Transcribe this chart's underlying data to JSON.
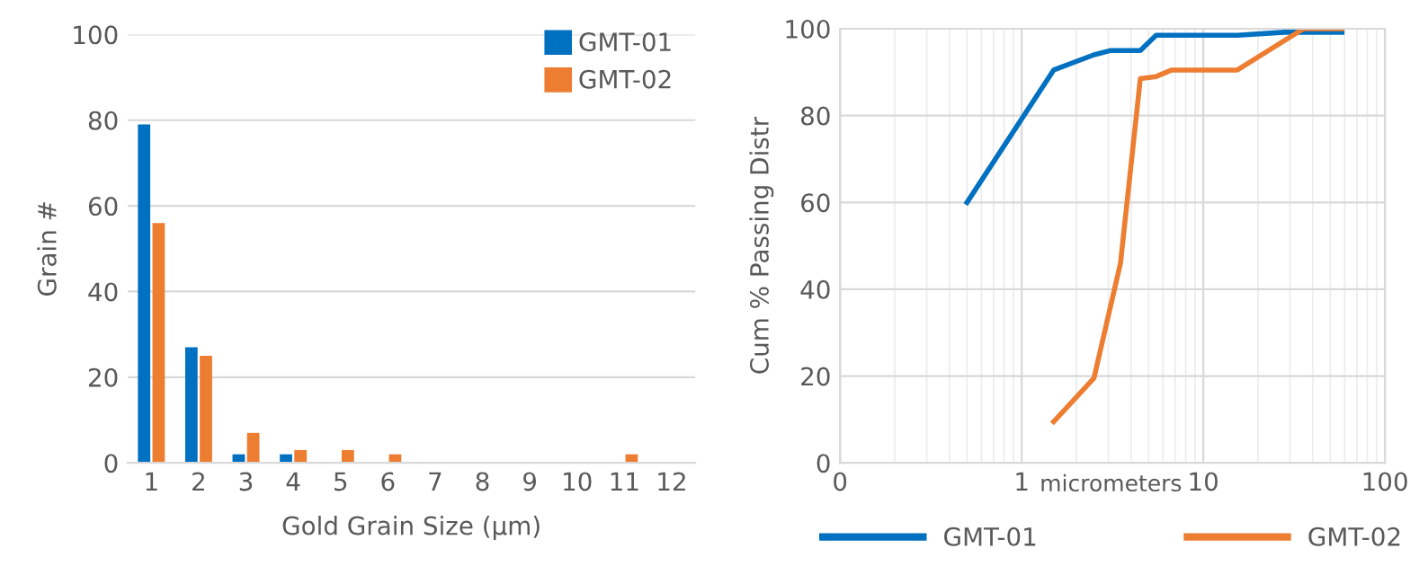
{
  "chart_data": [
    {
      "type": "bar",
      "xlabel": "Gold Grain Size (µm)",
      "ylabel": "Grain #",
      "categories": [
        "1",
        "2",
        "3",
        "4",
        "5",
        "6",
        "7",
        "8",
        "9",
        "10",
        "11",
        "12"
      ],
      "series": [
        {
          "name": "GMT-01",
          "color": "#0070c0",
          "values": [
            79,
            27,
            2,
            2,
            0,
            0,
            0,
            0,
            0,
            0,
            0,
            0
          ]
        },
        {
          "name": "GMT-02",
          "color": "#ed7d31",
          "values": [
            56,
            25,
            7,
            3,
            3,
            2,
            0,
            0,
            0,
            0,
            2,
            0
          ]
        }
      ],
      "ylim": [
        0,
        100
      ],
      "yticks": [
        0,
        20,
        40,
        60,
        80,
        100
      ],
      "grid": "y",
      "legend": "top right"
    },
    {
      "type": "line",
      "xlabel": "micrometers",
      "ylabel": "Cum % Passing Distr",
      "log": "x",
      "series": [
        {
          "name": "GMT-01",
          "color": "#0070c0",
          "x": [
            0.5,
            1.5,
            2.5,
            3.1,
            4.5,
            5.5,
            15.4,
            28,
            58
          ],
          "values": [
            60,
            90.5,
            94,
            95,
            95,
            98.5,
            98.5,
            99.2,
            99.2
          ]
        },
        {
          "name": "GMT-02",
          "color": "#ed7d31",
          "x": [
            1.5,
            2.5,
            3.5,
            4.5,
            5.5,
            6.7,
            15.4,
            35.6,
            58
          ],
          "values": [
            9.5,
            19.5,
            46,
            88.5,
            89,
            90.5,
            90.5,
            100,
            100
          ]
        }
      ],
      "xlim": [
        0.1,
        100
      ],
      "xticks": [
        {
          "value": 0.1,
          "label": "0"
        },
        1,
        10,
        100
      ],
      "ylim": [
        0,
        100
      ],
      "yticks": [
        0,
        20,
        40,
        60,
        80,
        100
      ],
      "grid": true,
      "legend": "bottom",
      "marker": "none",
      "line_style": "solid"
    }
  ]
}
